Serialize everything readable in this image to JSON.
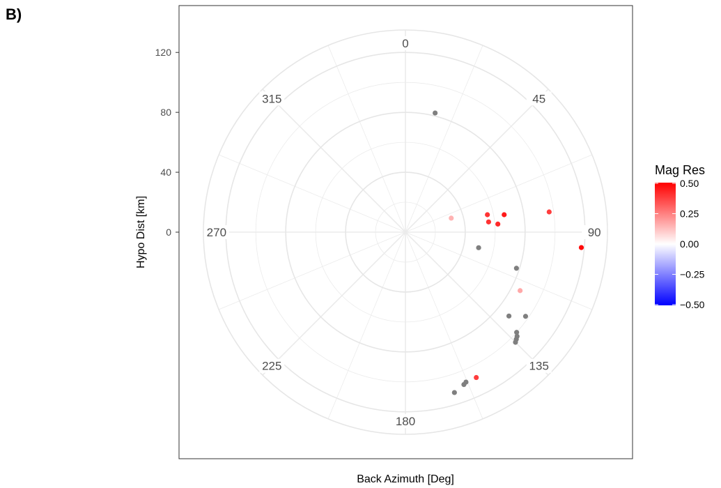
{
  "panel_label": "B)",
  "chart_data": {
    "type": "scatter",
    "coord": "polar",
    "title": "",
    "xlabel": "Back Azimuth [Deg]",
    "ylabel": "Hypo Dist [km]",
    "theta_ticks": [
      0,
      45,
      90,
      135,
      180,
      225,
      270,
      315
    ],
    "r_ticks": [
      0,
      40,
      80,
      120
    ],
    "r_max": 135,
    "grid": true,
    "legend": {
      "title": "Mag Res",
      "position": "right",
      "ticks": [
        "0.50",
        "0.25",
        "0.00",
        "-0.25",
        "-0.50"
      ],
      "range": [
        -0.5,
        0.5
      ],
      "colors": {
        "low": "#0000ff",
        "mid": "#ffffff",
        "high": "#ff0000"
      }
    },
    "na_color": "#7f7f7f",
    "points": [
      {
        "theta": 14,
        "r": 82,
        "mag_res": null
      },
      {
        "theta": 73,
        "r": 32,
        "mag_res": 0.15
      },
      {
        "theta": 78,
        "r": 56,
        "mag_res": 0.4
      },
      {
        "theta": 80,
        "r": 67,
        "mag_res": 0.45
      },
      {
        "theta": 82,
        "r": 97,
        "mag_res": 0.38
      },
      {
        "theta": 83,
        "r": 56,
        "mag_res": 0.4
      },
      {
        "theta": 85,
        "r": 62,
        "mag_res": 0.42
      },
      {
        "theta": 95,
        "r": 118,
        "mag_res": 0.48
      },
      {
        "theta": 102,
        "r": 50,
        "mag_res": null
      },
      {
        "theta": 108,
        "r": 78,
        "mag_res": null
      },
      {
        "theta": 117,
        "r": 86,
        "mag_res": 0.17
      },
      {
        "theta": 125,
        "r": 98,
        "mag_res": null
      },
      {
        "theta": 129,
        "r": 89,
        "mag_res": null
      },
      {
        "theta": 132,
        "r": 100,
        "mag_res": null
      },
      {
        "theta": 133,
        "r": 102,
        "mag_res": null
      },
      {
        "theta": 134,
        "r": 103,
        "mag_res": null
      },
      {
        "theta": 135,
        "r": 104,
        "mag_res": null
      },
      {
        "theta": 154,
        "r": 108,
        "mag_res": 0.38
      },
      {
        "theta": 158,
        "r": 108,
        "mag_res": null
      },
      {
        "theta": 159,
        "r": 109,
        "mag_res": null
      },
      {
        "theta": 163,
        "r": 112,
        "mag_res": null
      }
    ]
  }
}
